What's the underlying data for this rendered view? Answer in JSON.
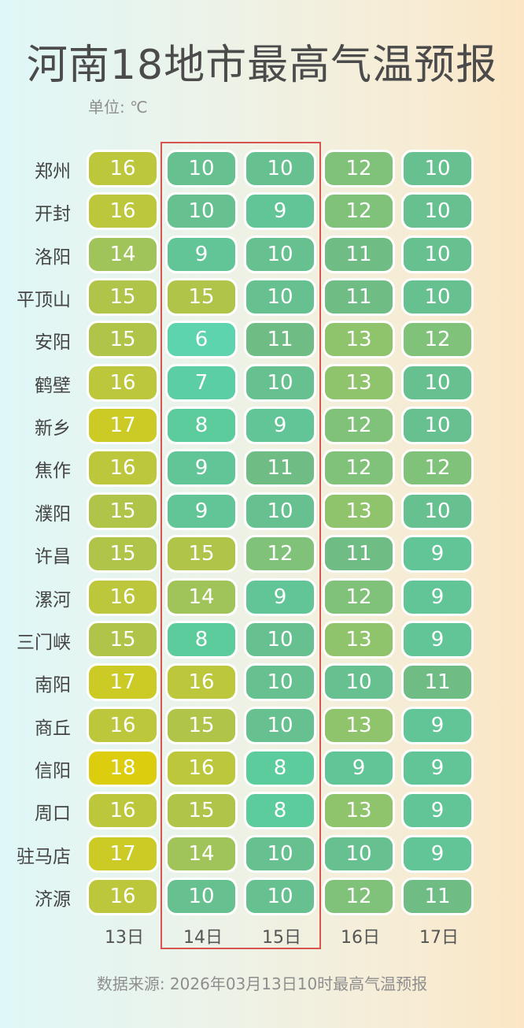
{
  "title": "河南18地市最高气温预报",
  "unit": "单位: ℃",
  "source": "数据来源: 2026年03月13日10时最高气温预报",
  "highlighted_days": [
    "14日",
    "15日"
  ],
  "colors": {
    "highlight_border": "#d9534f",
    "scale": {
      "6": "#5dd3ae",
      "7": "#5ccea5",
      "8": "#5dcc9d",
      "9": "#62c597",
      "10": "#67c090",
      "11": "#70bc85",
      "12": "#80c27a",
      "13": "#8fc46c",
      "14": "#a0c45a",
      "15": "#afc449",
      "16": "#bcc73b",
      "17": "#ccca25",
      "18": "#dccd0f"
    }
  },
  "chart_data": {
    "type": "heatmap",
    "title": "河南18地市最高气温预报",
    "unit": "℃",
    "columns": [
      "13日",
      "14日",
      "15日",
      "16日",
      "17日"
    ],
    "rows": [
      "郑州",
      "开封",
      "洛阳",
      "平顶山",
      "安阳",
      "鹤壁",
      "新乡",
      "焦作",
      "濮阳",
      "许昌",
      "漯河",
      "三门峡",
      "南阳",
      "商丘",
      "信阳",
      "周口",
      "驻马店",
      "济源"
    ],
    "values": [
      [
        16,
        10,
        10,
        12,
        10
      ],
      [
        16,
        10,
        9,
        12,
        10
      ],
      [
        14,
        9,
        10,
        11,
        10
      ],
      [
        15,
        15,
        10,
        11,
        10
      ],
      [
        15,
        6,
        11,
        13,
        12
      ],
      [
        16,
        7,
        10,
        13,
        10
      ],
      [
        17,
        8,
        9,
        12,
        10
      ],
      [
        16,
        9,
        11,
        12,
        12
      ],
      [
        15,
        9,
        10,
        13,
        10
      ],
      [
        15,
        15,
        12,
        11,
        9
      ],
      [
        16,
        14,
        9,
        12,
        9
      ],
      [
        15,
        8,
        10,
        13,
        9
      ],
      [
        17,
        16,
        10,
        10,
        11
      ],
      [
        16,
        15,
        10,
        13,
        9
      ],
      [
        18,
        16,
        8,
        9,
        9
      ],
      [
        16,
        15,
        8,
        13,
        9
      ],
      [
        17,
        14,
        10,
        10,
        9
      ],
      [
        16,
        10,
        10,
        12,
        11
      ]
    ]
  }
}
